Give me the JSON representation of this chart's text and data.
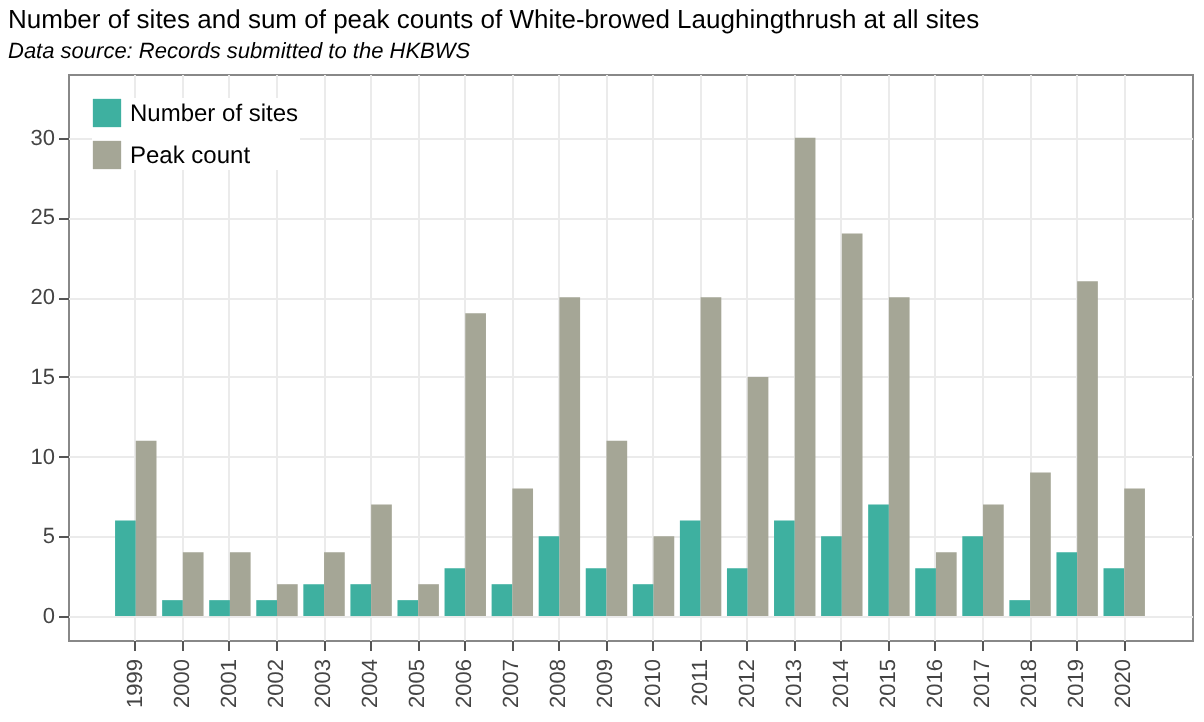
{
  "chart_data": {
    "type": "bar",
    "title": "Number of sites and sum of peak counts of White-browed Laughingthrush at all sites",
    "subtitle": "Data source: Records submitted to the HKBWS",
    "categories": [
      "1999",
      "2000",
      "2001",
      "2002",
      "2003",
      "2004",
      "2005",
      "2006",
      "2007",
      "2008",
      "2009",
      "2010",
      "2011",
      "2012",
      "2013",
      "2014",
      "2015",
      "2016",
      "2017",
      "2018",
      "2019",
      "2020"
    ],
    "series": [
      {
        "name": "Number of sites",
        "color": "#3eb0a0",
        "values": [
          6,
          1,
          1,
          1,
          2,
          2,
          1,
          3,
          2,
          5,
          3,
          2,
          6,
          3,
          6,
          5,
          7,
          3,
          5,
          1,
          4,
          3
        ]
      },
      {
        "name": "Peak count",
        "color": "#a5a696",
        "values": [
          11,
          4,
          4,
          2,
          4,
          7,
          2,
          19,
          8,
          20,
          11,
          5,
          20,
          15,
          30,
          24,
          20,
          4,
          7,
          9,
          21,
          8
        ]
      }
    ],
    "ylim": [
      -1.5,
      34
    ],
    "yticks": [
      0,
      5,
      10,
      15,
      20,
      25,
      30
    ],
    "grid": true,
    "legend": "top left"
  }
}
